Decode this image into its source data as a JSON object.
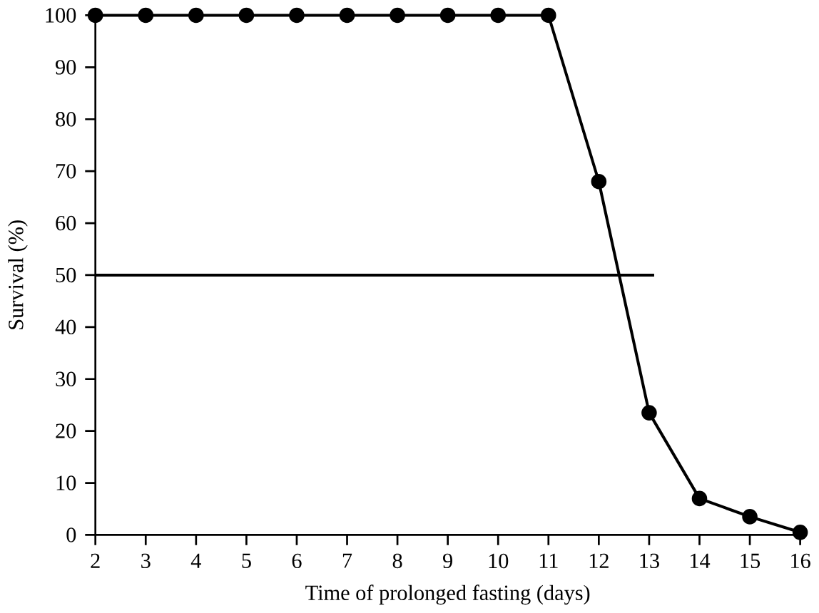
{
  "chart_data": {
    "type": "line",
    "xlabel": "Time of prolonged fasting (days)",
    "ylabel": "Survival (%)",
    "x": [
      2,
      3,
      4,
      5,
      6,
      7,
      8,
      9,
      10,
      11,
      12,
      13,
      14,
      15,
      16
    ],
    "series": [
      {
        "color": "#000000",
        "marker": "circle",
        "values": [
          100,
          100,
          100,
          100,
          100,
          100,
          100,
          100,
          100,
          100,
          68,
          23.5,
          7,
          3.5,
          0.5
        ]
      },
      {
        "color": "#000000",
        "marker": "none",
        "x": [
          2,
          13.1
        ],
        "values": [
          50,
          50
        ]
      }
    ],
    "xlim": [
      2,
      16
    ],
    "ylim": [
      0,
      100
    ],
    "xticks": [
      2,
      3,
      4,
      5,
      6,
      7,
      8,
      9,
      10,
      11,
      12,
      13,
      14,
      15,
      16
    ],
    "yticks": [
      0,
      10,
      20,
      30,
      40,
      50,
      60,
      70,
      80,
      90,
      100
    ],
    "grid": false,
    "line_style": "solid"
  }
}
